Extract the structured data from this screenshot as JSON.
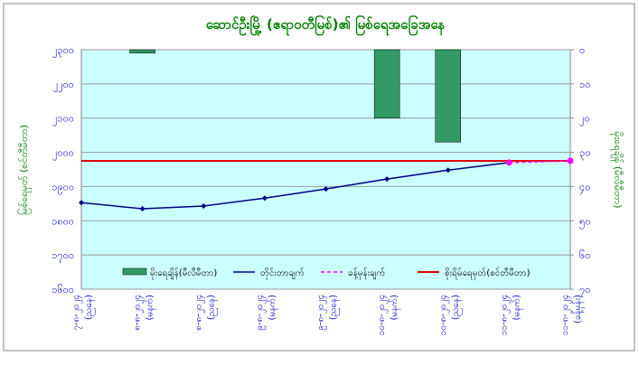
{
  "chart_data": {
    "type": "combo",
    "title": "ဆောင်ဦးမြို့ (ဧရာဝတီမြစ်)၏ မြစ်ရေအခြေအနေ",
    "y_label": "မြစ်ရေမှတ် (စင်တီမီတာ)",
    "y2_label": "မိုးရေချိန် (မီလီမီတာ)",
    "categories": [
      "၇-၈-၂၀၂၄",
      "၈-၈-၂၀၂၄",
      "၈-၈-၂၀၂၄",
      "၉-၈-၂၀၂၄",
      "၉-၈-၂၀၂၄",
      "၁၀-၈-၂၀၂၄",
      "၁၀-၈-၂၀၂၄",
      "၁၁-၈-၂၀၂၄",
      "၁၁-၈-၂၀၂၄"
    ],
    "category_notes": [
      "(ညနေ)",
      "(မနက်)",
      "(ညနေ)",
      "(မနက်)",
      "(ညနေ)",
      "(မနက်)",
      "(ညနေ)",
      "(မနက်)",
      "(ခန့်မှန်း)"
    ],
    "ylim": [
      1600,
      2300
    ],
    "yticks": [
      {
        "value": 1600,
        "label": "၁၆၀၀"
      },
      {
        "value": 1700,
        "label": "၁၇၀၀"
      },
      {
        "value": 1800,
        "label": "၁၈၀၀"
      },
      {
        "value": 1900,
        "label": "၁၉၀၀"
      },
      {
        "value": 2000,
        "label": "၂၀၀၀"
      },
      {
        "value": 2100,
        "label": "၂၁၀၀"
      },
      {
        "value": 2200,
        "label": "၂၂၀၀"
      },
      {
        "value": 2300,
        "label": "၂၃၀၀"
      }
    ],
    "y2lim": [
      70,
      0
    ],
    "y2ticks": [
      {
        "value": 0,
        "label": "၀"
      },
      {
        "value": 10,
        "label": "၁၀"
      },
      {
        "value": 20,
        "label": "၂၀"
      },
      {
        "value": 30,
        "label": "၃၀"
      },
      {
        "value": 40,
        "label": "၄၀"
      },
      {
        "value": 50,
        "label": "၅၀"
      },
      {
        "value": 60,
        "label": "၆၀"
      },
      {
        "value": 70,
        "label": "၇၀"
      }
    ],
    "grid": true,
    "series": [
      {
        "name": "မိုးရေချိန်(မီလီမီတာ)",
        "type": "bar",
        "axis": "y2",
        "color": "#339966",
        "values": [
          0,
          1,
          0,
          0,
          0,
          20,
          27,
          0,
          null
        ]
      },
      {
        "name": "တိုင်းတာချက်",
        "type": "line",
        "color": "#000080",
        "values": [
          1853,
          1835,
          1843,
          1866,
          1893,
          1922,
          1948,
          1970,
          null
        ]
      },
      {
        "name": "ခန့်မှန်းချက်",
        "type": "forecast",
        "color": "#ff00ff",
        "values": [
          null,
          null,
          null,
          null,
          null,
          null,
          null,
          1970,
          1975
        ]
      }
    ],
    "danger": {
      "name": "စိုးရိမ်ရေမှတ်(စင်တီမီတာ)",
      "color": "#e00000",
      "value": 1975
    }
  }
}
